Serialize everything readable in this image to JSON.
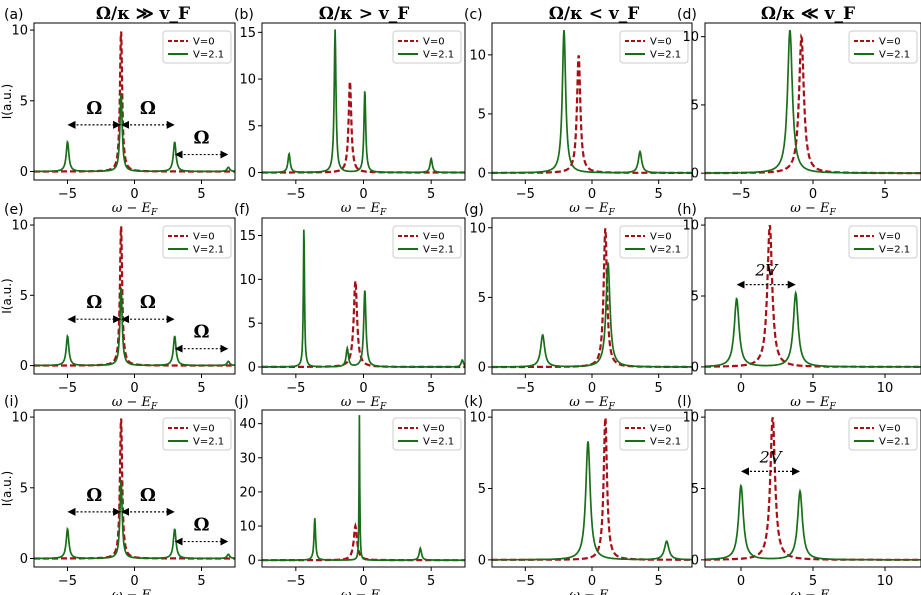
{
  "column_titles": [
    "Ω/κ ≫ v_F",
    "Ω/κ > v_F",
    "Ω/κ < v_F",
    "Ω/κ ≪ v_F"
  ],
  "legend": {
    "series0": "V=0",
    "series1": "V=2.1"
  },
  "colors": {
    "v0": "#a50f15",
    "v21": "#1a6e1a"
  },
  "xlabel": "ω − E_F",
  "ylabel": "I(a.u.)",
  "chart_data": [
    {
      "type": "line",
      "label": "(a)",
      "xlim": [
        -7.5,
        7.5
      ],
      "ylim": [
        -0.6,
        10.5
      ],
      "yticks": [
        0,
        5,
        10
      ],
      "xticks": [
        -5,
        0,
        5
      ],
      "xlabel": "ω − E_F",
      "ylabel": "I(a.u.)",
      "series": [
        {
          "name": "V=0",
          "style": "dashed",
          "peaks": [
            {
              "x": -1,
              "h": 10,
              "w": 0.1
            }
          ]
        },
        {
          "name": "V=2.1",
          "style": "solid",
          "peaks": [
            {
              "x": -5,
              "h": 2.1,
              "w": 0.12
            },
            {
              "x": -1,
              "h": 5.6,
              "w": 0.1
            },
            {
              "x": 3,
              "h": 2.1,
              "w": 0.12
            },
            {
              "x": 7,
              "h": 0.3,
              "w": 0.12
            }
          ]
        }
      ],
      "annotations": [
        {
          "text": "Ω",
          "type": "omega",
          "y": 3.3,
          "from": -5,
          "to": -1
        },
        {
          "text": "Ω",
          "type": "omega",
          "y": 3.3,
          "from": -1,
          "to": 3
        },
        {
          "text": "Ω",
          "type": "omega",
          "y": 1.2,
          "from": 3,
          "to": 7
        }
      ]
    },
    {
      "type": "line",
      "label": "(b)",
      "xlim": [
        -7.5,
        7.5
      ],
      "ylim": [
        -0.8,
        16
      ],
      "yticks": [
        0,
        5,
        10,
        15
      ],
      "xticks": [
        -5,
        0,
        5
      ],
      "xlabel": "ω − E_F",
      "series": [
        {
          "name": "V=0",
          "style": "dashed",
          "peaks": [
            {
              "x": -1,
              "h": 9.8,
              "w": 0.12
            }
          ]
        },
        {
          "name": "V=2.1",
          "style": "solid",
          "peaks": [
            {
              "x": -5.5,
              "h": 2,
              "w": 0.1
            },
            {
              "x": -2.1,
              "h": 15.3,
              "w": 0.08
            },
            {
              "x": 0.1,
              "h": 8.8,
              "w": 0.08
            },
            {
              "x": 5,
              "h": 1.5,
              "w": 0.1
            }
          ]
        }
      ]
    },
    {
      "type": "line",
      "label": "(c)",
      "xlim": [
        -7.5,
        7.5
      ],
      "ylim": [
        -0.6,
        12.7
      ],
      "yticks": [
        0,
        5,
        10
      ],
      "xticks": [
        -5,
        0,
        5
      ],
      "xlabel": "ω − E_F",
      "series": [
        {
          "name": "V=0",
          "style": "dashed",
          "peaks": [
            {
              "x": -1,
              "h": 10,
              "w": 0.15
            }
          ]
        },
        {
          "name": "V=2.1",
          "style": "solid",
          "peaks": [
            {
              "x": -2.1,
              "h": 12.1,
              "w": 0.15
            },
            {
              "x": 3.6,
              "h": 1.8,
              "w": 0.15
            }
          ]
        }
      ]
    },
    {
      "type": "line",
      "label": "(d)",
      "xlim": [
        -7.5,
        7.5
      ],
      "ylim": [
        -0.5,
        11
      ],
      "yticks": [
        0,
        5,
        10
      ],
      "xticks": [
        -5,
        0,
        5
      ],
      "xlabel": "ω − E_F",
      "series": [
        {
          "name": "V=0",
          "style": "dashed",
          "peaks": [
            {
              "x": -0.8,
              "h": 10,
              "w": 0.2
            }
          ]
        },
        {
          "name": "V=2.1",
          "style": "solid",
          "peaks": [
            {
              "x": -1.6,
              "h": 10.5,
              "w": 0.2
            }
          ]
        }
      ]
    },
    {
      "type": "line",
      "label": "(e)",
      "xlim": [
        -7.5,
        7.5
      ],
      "ylim": [
        -0.6,
        10.5
      ],
      "yticks": [
        0,
        5,
        10
      ],
      "xticks": [
        -5,
        0,
        5
      ],
      "xlabel": "ω − E_F",
      "ylabel": "I(a.u.)",
      "series": [
        {
          "name": "V=0",
          "style": "dashed",
          "peaks": [
            {
              "x": -1,
              "h": 10,
              "w": 0.1
            }
          ]
        },
        {
          "name": "V=2.1",
          "style": "solid",
          "peaks": [
            {
              "x": -5,
              "h": 2.1,
              "w": 0.12
            },
            {
              "x": -1,
              "h": 5.6,
              "w": 0.1
            },
            {
              "x": 3,
              "h": 2.1,
              "w": 0.12
            },
            {
              "x": 7,
              "h": 0.3,
              "w": 0.12
            }
          ]
        }
      ],
      "annotations": [
        {
          "text": "Ω",
          "type": "omega",
          "y": 3.3,
          "from": -5,
          "to": -1
        },
        {
          "text": "Ω",
          "type": "omega",
          "y": 3.3,
          "from": -1,
          "to": 3
        },
        {
          "text": "Ω",
          "type": "omega",
          "y": 1.2,
          "from": 3,
          "to": 7
        }
      ]
    },
    {
      "type": "line",
      "label": "(f)",
      "xlim": [
        -7.5,
        7.5
      ],
      "ylim": [
        -0.8,
        17
      ],
      "yticks": [
        0,
        5,
        10,
        15
      ],
      "xticks": [
        -5,
        0,
        5
      ],
      "xlabel": "ω − E_F",
      "series": [
        {
          "name": "V=0",
          "style": "dashed",
          "peaks": [
            {
              "x": -0.6,
              "h": 9.8,
              "w": 0.15
            }
          ]
        },
        {
          "name": "V=2.1",
          "style": "solid",
          "peaks": [
            {
              "x": -4.4,
              "h": 16.3,
              "w": 0.05
            },
            {
              "x": -1.2,
              "h": 2.1,
              "w": 0.1
            },
            {
              "x": 0.1,
              "h": 8.8,
              "w": 0.1
            },
            {
              "x": 7.3,
              "h": 0.8,
              "w": 0.1
            }
          ]
        }
      ]
    },
    {
      "type": "line",
      "label": "(g)",
      "xlim": [
        -7.5,
        7.5
      ],
      "ylim": [
        -0.5,
        10.7
      ],
      "yticks": [
        0,
        5,
        10
      ],
      "xticks": [
        -5,
        0,
        5
      ],
      "xlabel": "ω − E_F",
      "series": [
        {
          "name": "V=0",
          "style": "dashed",
          "peaks": [
            {
              "x": 1,
              "h": 10,
              "w": 0.15
            }
          ]
        },
        {
          "name": "V=2.1",
          "style": "solid",
          "peaks": [
            {
              "x": -3.7,
              "h": 2.3,
              "w": 0.18
            },
            {
              "x": 1.2,
              "h": 7.5,
              "w": 0.18
            }
          ]
        }
      ]
    },
    {
      "type": "line",
      "label": "(h)",
      "xlim": [
        -2.5,
        12.5
      ],
      "ylim": [
        -0.5,
        10.5
      ],
      "yticks": [
        0,
        5,
        10
      ],
      "xticks": [
        0,
        5,
        10
      ],
      "xlabel": "ω − E_F",
      "series": [
        {
          "name": "V=0",
          "style": "dashed",
          "peaks": [
            {
              "x": 2,
              "h": 10,
              "w": 0.2
            }
          ]
        },
        {
          "name": "V=2.1",
          "style": "solid",
          "peaks": [
            {
              "x": -0.3,
              "h": 4.8,
              "w": 0.2
            },
            {
              "x": 3.8,
              "h": 5.2,
              "w": 0.2
            }
          ]
        }
      ],
      "annotations": [
        {
          "text": "2V",
          "type": "twoV",
          "y": 5.8,
          "from": -0.3,
          "to": 3.8
        }
      ]
    },
    {
      "type": "line",
      "label": "(i)",
      "xlim": [
        -7.5,
        7.5
      ],
      "ylim": [
        -0.6,
        10.5
      ],
      "yticks": [
        0,
        5,
        10
      ],
      "xticks": [
        -5,
        0,
        5
      ],
      "xlabel": "ω − E_F",
      "ylabel": "I(a.u.)",
      "series": [
        {
          "name": "V=0",
          "style": "dashed",
          "peaks": [
            {
              "x": -1,
              "h": 10,
              "w": 0.1
            }
          ]
        },
        {
          "name": "V=2.1",
          "style": "solid",
          "peaks": [
            {
              "x": -5,
              "h": 2.1,
              "w": 0.12
            },
            {
              "x": -1,
              "h": 5.6,
              "w": 0.1
            },
            {
              "x": 3,
              "h": 2.1,
              "w": 0.12
            },
            {
              "x": 7,
              "h": 0.3,
              "w": 0.12
            }
          ]
        }
      ],
      "annotations": [
        {
          "text": "Ω",
          "type": "omega",
          "y": 3.3,
          "from": -5,
          "to": -1
        },
        {
          "text": "Ω",
          "type": "omega",
          "y": 3.3,
          "from": -1,
          "to": 3
        },
        {
          "text": "Ω",
          "type": "omega",
          "y": 1.2,
          "from": 3,
          "to": 7
        }
      ]
    },
    {
      "type": "line",
      "label": "(j)",
      "xlim": [
        -7.5,
        7.5
      ],
      "ylim": [
        -2,
        44
      ],
      "yticks": [
        0,
        10,
        20,
        30,
        40
      ],
      "xticks": [
        -5,
        0,
        5
      ],
      "xlabel": "ω − E_F",
      "series": [
        {
          "name": "V=0",
          "style": "dashed",
          "peaks": [
            {
              "x": -0.6,
              "h": 10,
              "w": 0.15
            }
          ]
        },
        {
          "name": "V=2.1",
          "style": "solid",
          "peaks": [
            {
              "x": -3.6,
              "h": 12.3,
              "w": 0.07
            },
            {
              "x": -0.3,
              "h": 42.5,
              "w": 0.03
            },
            {
              "x": 4.2,
              "h": 3.5,
              "w": 0.1
            }
          ]
        }
      ]
    },
    {
      "type": "line",
      "label": "(k)",
      "xlim": [
        -7.5,
        7.5
      ],
      "ylim": [
        -0.5,
        10.5
      ],
      "yticks": [
        0,
        5,
        10
      ],
      "xticks": [
        -5,
        0,
        5
      ],
      "xlabel": "ω − E_F",
      "series": [
        {
          "name": "V=0",
          "style": "dashed",
          "peaks": [
            {
              "x": 1,
              "h": 10,
              "w": 0.15
            }
          ]
        },
        {
          "name": "V=2.1",
          "style": "solid",
          "peaks": [
            {
              "x": -0.3,
              "h": 8.3,
              "w": 0.2
            },
            {
              "x": 5.6,
              "h": 1.3,
              "w": 0.2
            }
          ]
        }
      ]
    },
    {
      "type": "line",
      "label": "(l)",
      "xlim": [
        -2.5,
        12.5
      ],
      "ylim": [
        -0.5,
        10.5
      ],
      "yticks": [
        0,
        5,
        10
      ],
      "xticks": [
        0,
        5,
        10
      ],
      "xlabel": "ω − E_F",
      "series": [
        {
          "name": "V=0",
          "style": "dashed",
          "peaks": [
            {
              "x": 2.2,
              "h": 10,
              "w": 0.2
            }
          ]
        },
        {
          "name": "V=2.1",
          "style": "solid",
          "peaks": [
            {
              "x": 0,
              "h": 5.2,
              "w": 0.2
            },
            {
              "x": 4.1,
              "h": 4.8,
              "w": 0.2
            }
          ]
        }
      ],
      "annotations": [
        {
          "text": "2V",
          "type": "twoV",
          "y": 6.2,
          "from": 0,
          "to": 4.1
        }
      ]
    }
  ]
}
